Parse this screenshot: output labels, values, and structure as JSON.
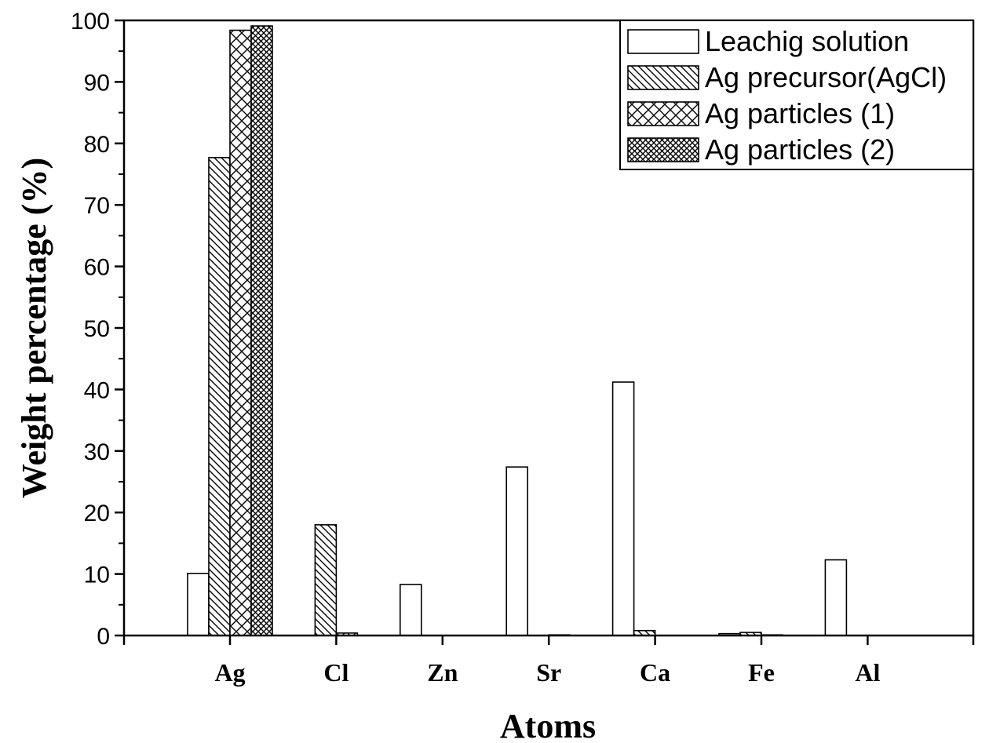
{
  "chart_data": {
    "type": "bar",
    "title": "",
    "xlabel": "Atoms",
    "ylabel": "Weight percentage (%)",
    "ylim": [
      0,
      100
    ],
    "yticks": [
      0,
      10,
      20,
      30,
      40,
      50,
      60,
      70,
      80,
      90,
      100
    ],
    "categories": [
      "Ag",
      "Cl",
      "Zn",
      "Sr",
      "Ca",
      "Fe",
      "Al"
    ],
    "legend_position": "top-right",
    "grid": false,
    "series": [
      {
        "name": "Leachig solution",
        "pattern": "none",
        "values": [
          10.1,
          0,
          8.3,
          27.4,
          41.2,
          0.3,
          12.3
        ]
      },
      {
        "name": "Ag precursor(AgCl)",
        "pattern": "diagonal",
        "values": [
          77.7,
          18.0,
          0,
          0,
          0.8,
          0.5,
          0
        ]
      },
      {
        "name": "Ag particles (1)",
        "pattern": "crosshatch",
        "values": [
          98.4,
          0.4,
          0,
          0.1,
          0,
          0.1,
          0
        ]
      },
      {
        "name": "Ag particles (2)",
        "pattern": "dense-crosshatch",
        "values": [
          99.1,
          0,
          0,
          0,
          0,
          0,
          0
        ]
      }
    ]
  }
}
